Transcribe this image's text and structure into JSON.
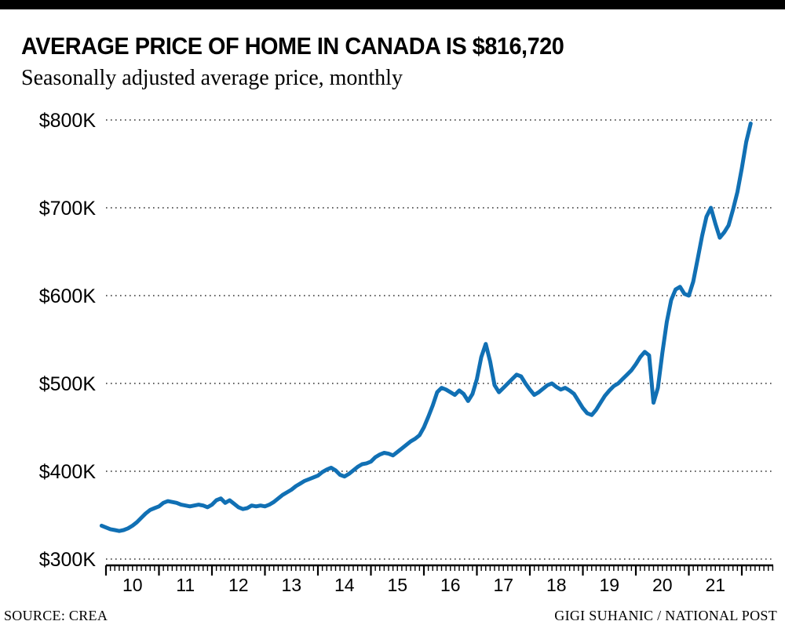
{
  "header": {
    "title": "AVERAGE PRICE OF HOME IN CANADA IS $816,720",
    "subtitle": "Seasonally adjusted average price, monthly"
  },
  "footer": {
    "source": "SOURCE: CREA",
    "credit": "GIGI SUHANIC / NATIONAL POST"
  },
  "colors": {
    "line": "#1170b4",
    "grid": "#4d4d4d",
    "axis": "#000000",
    "accent_bar": "#000000"
  },
  "chart_data": {
    "type": "line",
    "title": "AVERAGE PRICE OF HOME IN CANADA IS $816,720",
    "subtitle": "Seasonally adjusted average price, monthly",
    "unit": "CAD, thousands of dollars",
    "xlabel": "",
    "ylabel": "",
    "ylim": [
      300,
      800
    ],
    "grid": "dotted horizontal gridlines",
    "legend": "none",
    "y_ticks": [
      {
        "value": 300,
        "label": "$300K"
      },
      {
        "value": 400,
        "label": "$400K"
      },
      {
        "value": 500,
        "label": "$500K"
      },
      {
        "value": 600,
        "label": "$600K"
      },
      {
        "value": 700,
        "label": "$700K"
      },
      {
        "value": 800,
        "label": "$800K"
      }
    ],
    "x_ticks": [
      {
        "year": 2010,
        "label": "10"
      },
      {
        "year": 2011,
        "label": "11"
      },
      {
        "year": 2012,
        "label": "12"
      },
      {
        "year": 2013,
        "label": "13"
      },
      {
        "year": 2014,
        "label": "14"
      },
      {
        "year": 2015,
        "label": "15"
      },
      {
        "year": 2016,
        "label": "16"
      },
      {
        "year": 2017,
        "label": "17"
      },
      {
        "year": 2018,
        "label": "18"
      },
      {
        "year": 2019,
        "label": "19"
      },
      {
        "year": 2020,
        "label": "20"
      },
      {
        "year": 2021,
        "label": "21"
      }
    ],
    "x_start_year": 2009.9167,
    "x_step_years": 0.0833333,
    "series": [
      {
        "name": "Seasonally adjusted average home price (monthly)",
        "values": [
          338,
          336,
          334,
          333,
          332,
          333,
          335,
          338,
          342,
          347,
          352,
          356,
          358,
          360,
          364,
          366,
          365,
          364,
          362,
          361,
          360,
          361,
          362,
          361,
          359,
          362,
          367,
          369,
          364,
          367,
          363,
          359,
          357,
          358,
          361,
          360,
          361,
          360,
          362,
          365,
          369,
          373,
          376,
          379,
          383,
          386,
          389,
          391,
          393,
          395,
          399,
          402,
          404,
          401,
          396,
          394,
          397,
          401,
          405,
          408,
          409,
          411,
          416,
          419,
          421,
          420,
          418,
          422,
          426,
          430,
          434,
          437,
          441,
          450,
          462,
          475,
          490,
          495,
          493,
          490,
          487,
          492,
          488,
          480,
          488,
          505,
          530,
          545,
          525,
          498,
          490,
          495,
          500,
          505,
          510,
          508,
          500,
          493,
          487,
          490,
          494,
          498,
          500,
          496,
          493,
          495,
          492,
          488,
          480,
          472,
          466,
          464,
          470,
          478,
          486,
          492,
          497,
          500,
          505,
          510,
          515,
          522,
          530,
          536,
          532,
          478,
          495,
          535,
          570,
          595,
          607,
          610,
          602,
          600,
          616,
          642,
          668,
          690,
          700,
          682,
          666,
          672,
          680,
          698,
          718,
          745,
          775,
          796
        ]
      }
    ]
  }
}
